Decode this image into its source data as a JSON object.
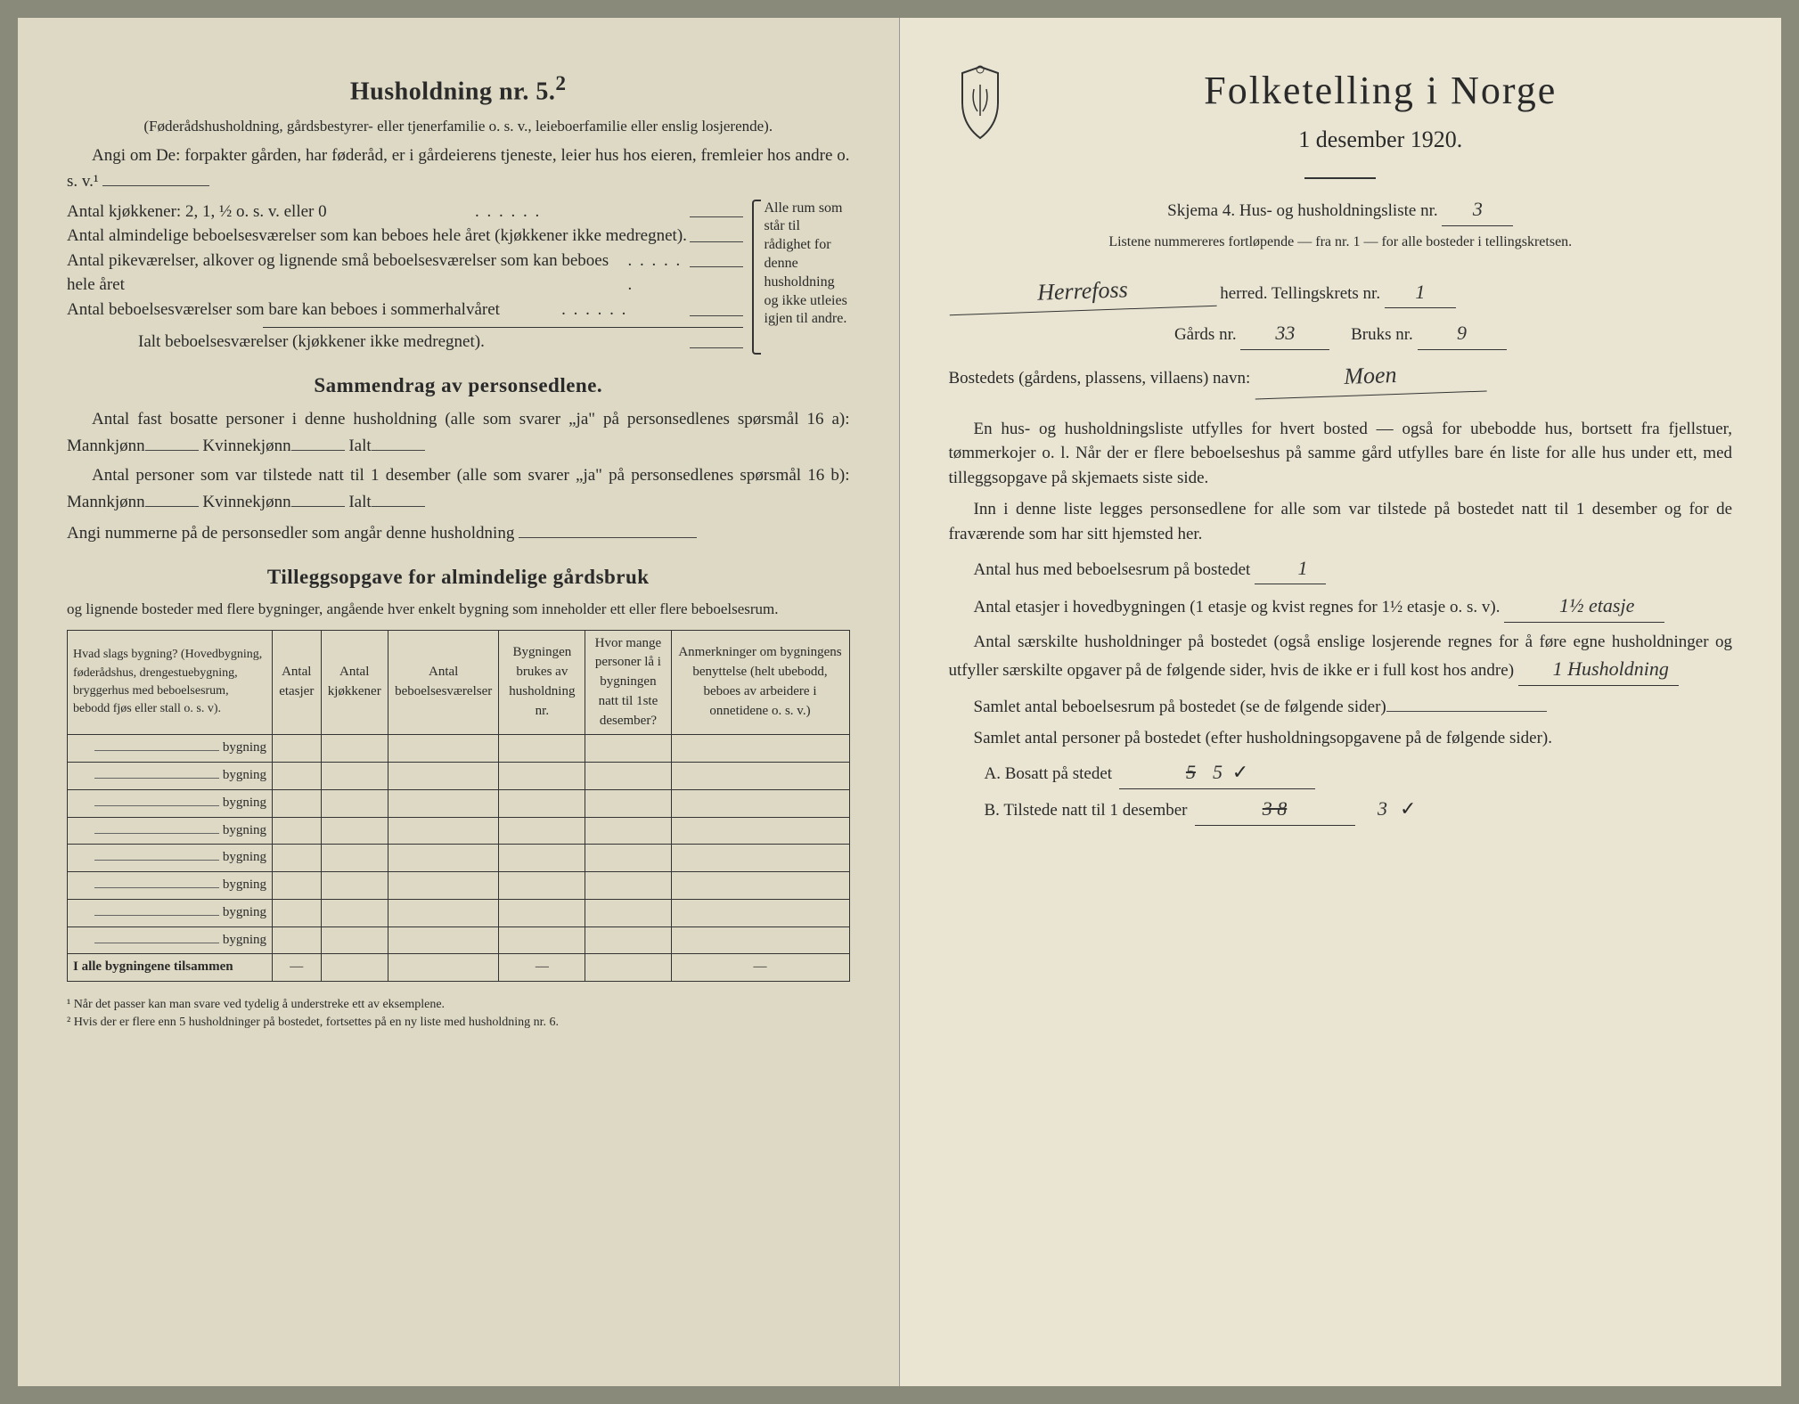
{
  "left": {
    "household_heading": "Husholdning nr. 5.",
    "household_sup": "2",
    "household_sub": "(Føderådshusholdning, gårdsbestyrer- eller tjenerfamilie o. s. v., leieboerfamilie eller enslig losjerende).",
    "angi_line": "Angi om De: forpakter gården, har føderåd, er i gårdeierens tjeneste, leier hus hos eieren, fremleier hos andre o. s. v.¹",
    "kitchens_line": "Antal kjøkkener: 2, 1, ½ o. s. v. eller 0",
    "brace_lines": [
      "Antal almindelige beboelsesværelser som kan beboes hele året (kjøkkener ikke medregnet).",
      "Antal pikeværelser, alkover og lignende små beboelsesværelser som kan beboes hele året",
      "Antal beboelsesværelser som bare kan beboes i sommerhalvåret"
    ],
    "brace_right": "Alle rum som står til rådighet for denne husholdning og ikke utleies igjen til andre.",
    "ialt_line": "Ialt beboelsesværelser (kjøkkener ikke medregnet).",
    "summary_heading": "Sammendrag av personsedlene.",
    "summary_p1a": "Antal fast bosatte personer i denne husholdning (alle som svarer „ja\" på personsedlenes spørsmål 16 a): Mannkjønn",
    "summary_p1b": "Kvinnekjønn",
    "summary_p1c": "Ialt",
    "summary_p2a": "Antal personer som var tilstede natt til 1 desember (alle som svarer „ja\" på personsedlenes spørsmål 16 b): Mannkjønn",
    "summary_p2b": "Kvinnekjønn",
    "summary_p2c": "Ialt",
    "summary_p3": "Angi nummerne på de personsedler som angår denne husholdning",
    "tillegg_heading": "Tilleggsopgave for almindelige gårdsbruk",
    "tillegg_sub": "og lignende bosteder med flere bygninger, angående hver enkelt bygning som inneholder ett eller flere beboelsesrum.",
    "table": {
      "headers": [
        "Hvad slags bygning?\n(Hovedbygning, føderådshus, drengestuebygning, bryggerhus med beboelsesrum, bebodd fjøs eller stall o. s. v).",
        "Antal etasjer",
        "Antal kjøkkener",
        "Antal beboelsesværelser",
        "Bygningen brukes av husholdning nr.",
        "Hvor mange personer lå i bygningen natt til 1ste desember?",
        "Anmerkninger om bygningens benyttelse (helt ubebodd, beboes av arbeidere i onnetidene o. s. v.)"
      ],
      "row_label": "bygning",
      "row_count": 8,
      "total_label": "I alle bygningene tilsammen",
      "dash": "—"
    },
    "footnote1": "¹ Når det passer kan man svare ved tydelig å understreke ett av eksemplene.",
    "footnote2": "² Hvis der er flere enn 5 husholdninger på bostedet, fortsettes på en ny liste med husholdning nr. 6."
  },
  "right": {
    "title": "Folketelling i Norge",
    "date": "1 desember 1920.",
    "skjema_line": "Skjema 4.  Hus- og husholdningsliste nr.",
    "skjema_nr": "3",
    "listene_line": "Listene nummereres fortløpende — fra nr. 1 — for alle bosteder i tellingskretsen.",
    "herred_hand": "Herrefoss",
    "herred_label": "herred.   Tellingskrets nr.",
    "krets_nr": "1",
    "gards_label": "Gårds nr.",
    "gards_nr": "33",
    "bruks_label": "Bruks nr.",
    "bruks_nr": "9",
    "bosted_label": "Bostedets (gårdens, plassens, villaens) navn:",
    "bosted_hand": "Moen",
    "p1": "En hus- og husholdningsliste utfylles for hvert bosted — også for ubebodde hus, bortsett fra fjellstuer, tømmerkojer o. l. Når der er flere beboelseshus på samme gård utfylles bare én liste for alle hus under ett, med tilleggsopgave på skjemaets siste side.",
    "p2": "Inn i denne liste legges personsedlene for alle som var tilstede på bostedet natt til 1 desember og for de fraværende som har sitt hjemsted her.",
    "antal_hus_label": "Antal hus med beboelsesrum på bostedet",
    "antal_hus_val": "1",
    "etasjer_label": "Antal etasjer i hovedbygningen (1 etasje og kvist regnes for 1½ etasje o. s. v).",
    "etasjer_val": "1½ etasje",
    "saerskilte_label": "Antal særskilte husholdninger på bostedet (også enslige losjerende regnes for å føre egne husholdninger og utfyller særskilte opgaver på de følgende sider, hvis de ikke er i full kost hos andre)",
    "saerskilte_val": "1 Husholdning",
    "samlet_rum": "Samlet antal beboelsesrum på bostedet (se de følgende sider)",
    "samlet_pers": "Samlet antal personer på bostedet (efter husholdningsopgavene på de følgende sider).",
    "A_label": "A.  Bosatt på stedet",
    "A_val_strike": "5",
    "A_val": "5",
    "B_label": "B.  Tilstede natt til 1 desember",
    "B_val_strike": "3 8",
    "B_val": "3"
  }
}
